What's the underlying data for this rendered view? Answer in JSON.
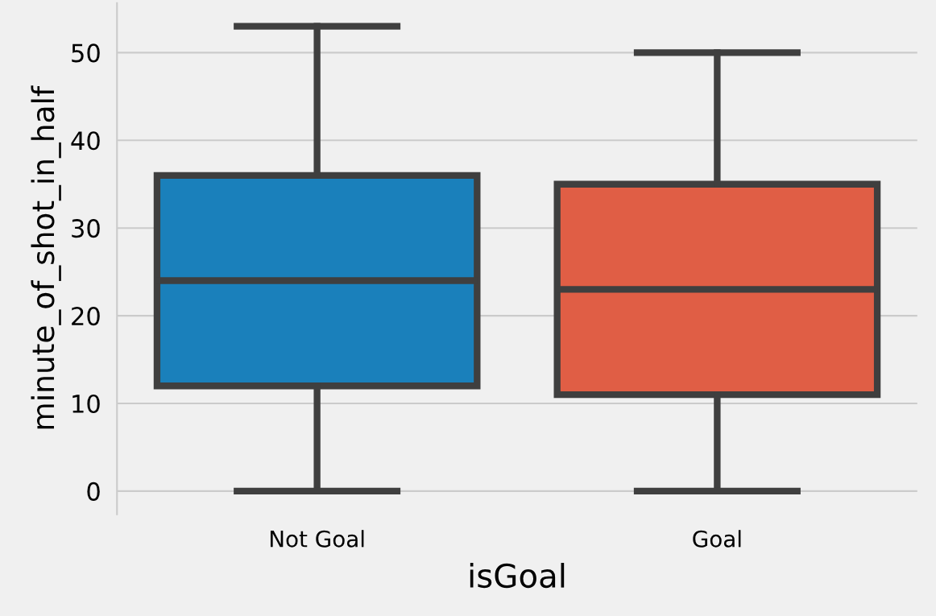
{
  "chart_data": {
    "type": "box",
    "xlabel": "isGoal",
    "ylabel": "minute_of_shot_in_half",
    "categories": [
      "Not Goal",
      "Goal"
    ],
    "colors": [
      "#1a80bb",
      "#e05e45"
    ],
    "boxes": [
      {
        "low": 0,
        "q1": 12,
        "median": 24,
        "q3": 36,
        "high": 53
      },
      {
        "low": 0,
        "q1": 11,
        "median": 23,
        "q3": 35,
        "high": 50
      }
    ],
    "ylim": [
      -2.65,
      55.65
    ],
    "yticks": [
      0,
      10,
      20,
      30,
      40,
      50
    ],
    "grid": "y"
  }
}
